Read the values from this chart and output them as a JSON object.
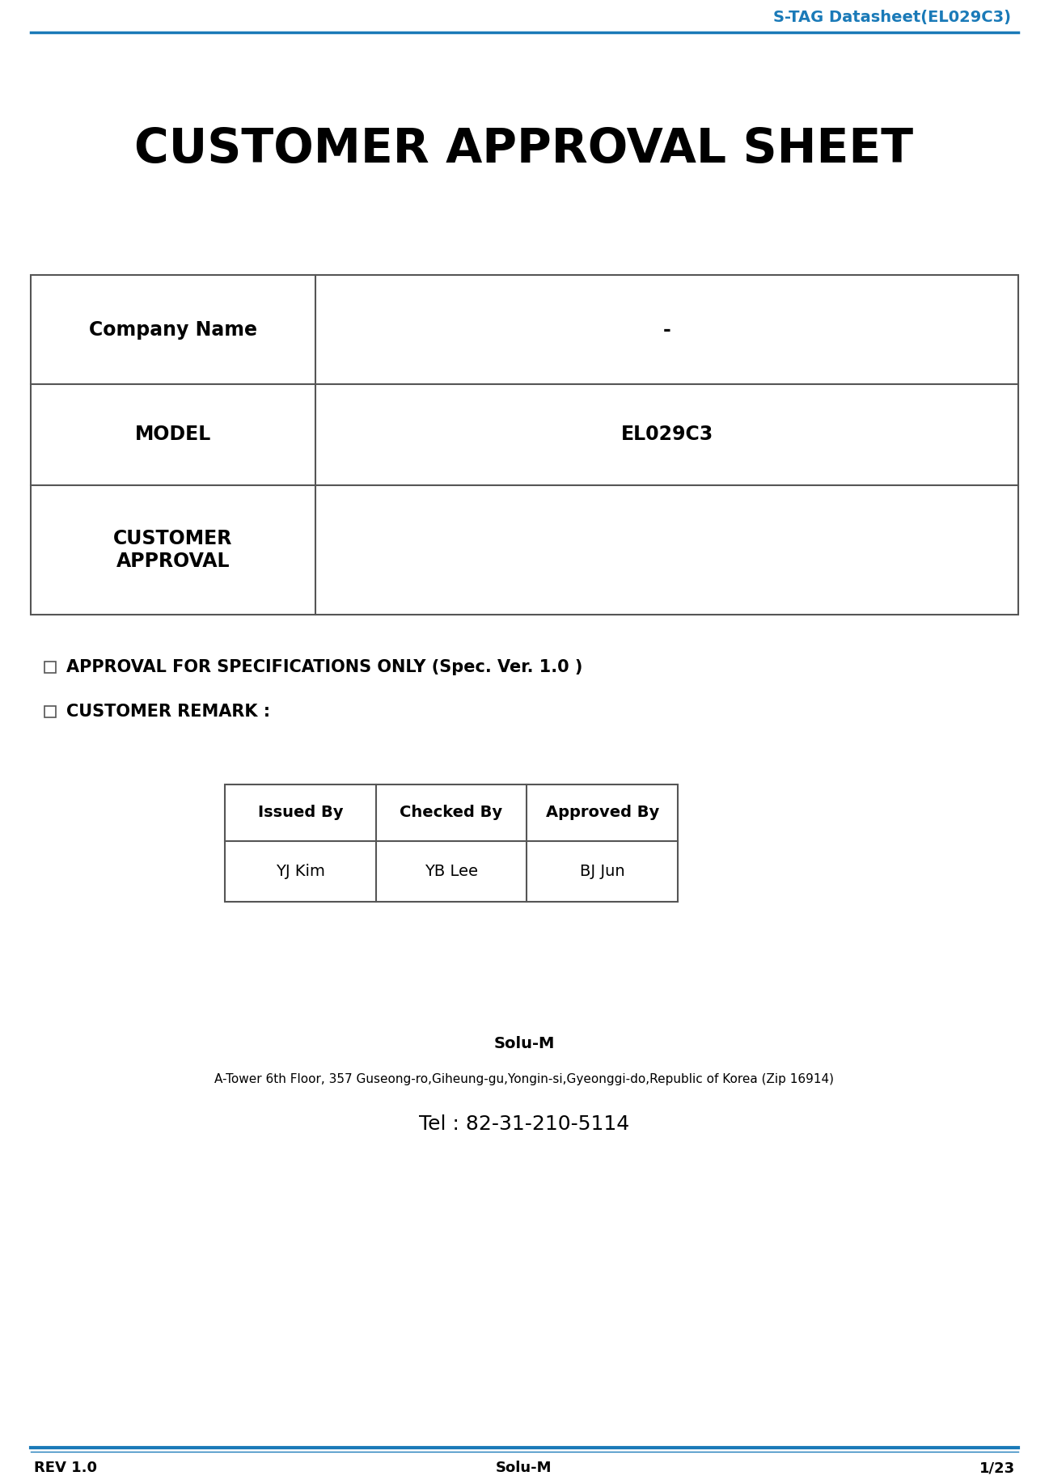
{
  "header_text": "S-TAG Datasheet(EL029C3)",
  "header_color": "#1a7ab8",
  "header_line_color": "#1a7ab8",
  "main_title": "CUSTOMER APPROVAL SHEET",
  "main_title_fontsize": 42,
  "table_rows": [
    {
      "label": "Company Name",
      "value": "-"
    },
    {
      "label": "MODEL",
      "value": "EL029C3"
    },
    {
      "label": "CUSTOMER\nAPPROVAL",
      "value": ""
    }
  ],
  "approval_items": [
    "APPROVAL FOR SPECIFICATIONS ONLY (Spec. Ver. 1.0 )",
    "CUSTOMER REMARK :"
  ],
  "inner_table_headers": [
    "Issued By",
    "Checked By",
    "Approved By"
  ],
  "inner_table_row": [
    "YJ Kim",
    "YB Lee",
    "BJ Jun"
  ],
  "company_name_bold": "Solu-M",
  "company_address": "A-Tower 6th Floor, 357 Guseong-ro,Giheung-gu,Yongin-si,Gyeonggi-do,Republic of Korea (Zip 16914)",
  "company_tel": "Tel : 82-31-210-5114",
  "footer_left": "REV 1.0",
  "footer_center": "Solu-M",
  "footer_right": "1/23",
  "footer_line_color": "#1a7ab8",
  "bg_color": "#ffffff",
  "text_color": "#000000",
  "table_line_color": "#555555"
}
